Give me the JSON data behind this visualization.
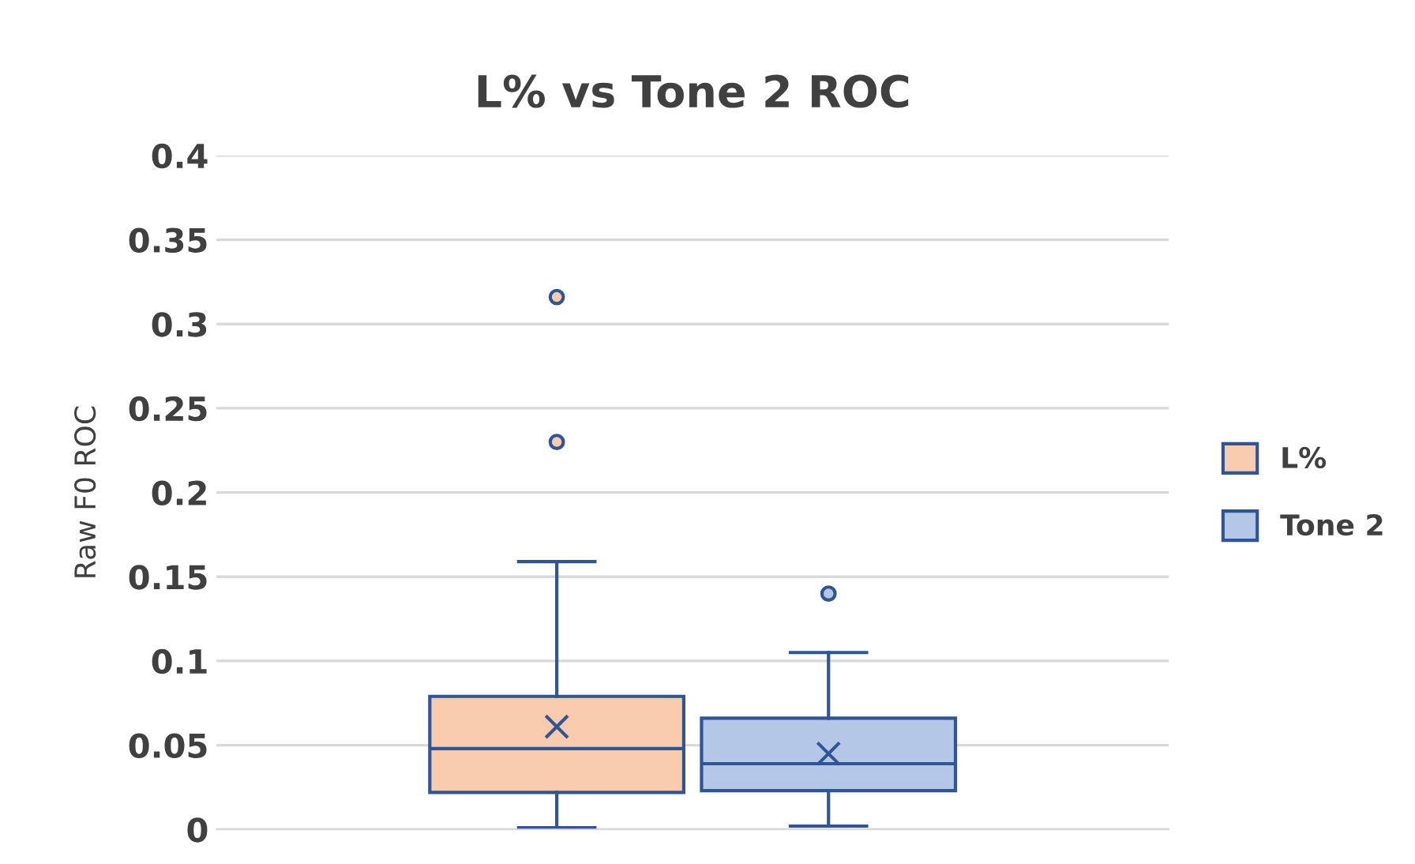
{
  "chart_data": {
    "type": "box",
    "title": "L% vs Tone 2 ROC",
    "ylabel": "Raw F0 ROC",
    "categories": [
      null
    ],
    "series": [
      {
        "name": "L%",
        "color": "#f8cbad",
        "boxes": [
          {
            "low": 0.001,
            "q1": 0.022,
            "median": 0.048,
            "q3": 0.079,
            "high": 0.159,
            "mean": 0.061,
            "outliers": [
              0.316,
              0.23
            ]
          }
        ]
      },
      {
        "name": "Tone 2",
        "color": "#b4c7e7",
        "boxes": [
          {
            "low": 0.002,
            "q1": 0.023,
            "median": 0.039,
            "q3": 0.066,
            "high": 0.105,
            "mean": 0.045,
            "outliers": [
              0.14
            ]
          }
        ]
      }
    ],
    "ylim": [
      0,
      0.4
    ],
    "yticks": [
      0,
      0.05,
      0.1,
      0.15,
      0.2,
      0.25,
      0.3,
      0.35,
      0.4
    ],
    "grid": "y",
    "legend": "right"
  }
}
